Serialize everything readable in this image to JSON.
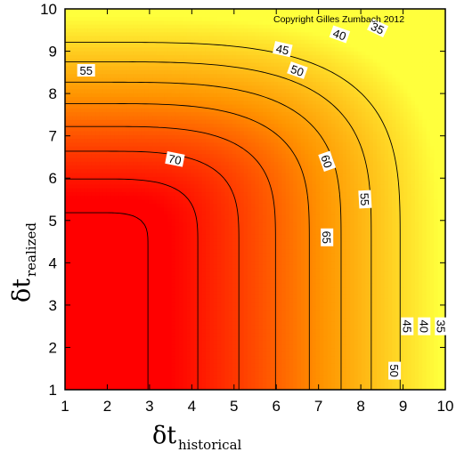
{
  "chart_data": {
    "type": "heatmap",
    "subtype": "filled-contour",
    "xlabel": {
      "main": "δt",
      "sub": "historical"
    },
    "ylabel": {
      "main": "δt",
      "sub": "realized"
    },
    "xlim": [
      1,
      10
    ],
    "ylim": [
      1,
      10
    ],
    "xticks": [
      "1",
      "2",
      "3",
      "4",
      "5",
      "6",
      "7",
      "8",
      "9",
      "10"
    ],
    "yticks": [
      "1",
      "2",
      "3",
      "4",
      "5",
      "6",
      "7",
      "8",
      "9",
      "10"
    ],
    "annotation": "Copyright Gilles Zumbach 2012",
    "colormap": {
      "low": "#ffff3c",
      "mid": "#ff9400",
      "high": "#ff0000"
    },
    "contour_levels": [
      35,
      40,
      45,
      50,
      55,
      60,
      65,
      70
    ],
    "contour_labels": [
      {
        "text": "35",
        "x": 8.4,
        "y": 9.55
      },
      {
        "text": "40",
        "x": 7.5,
        "y": 9.4
      },
      {
        "text": "45",
        "x": 6.15,
        "y": 9.05
      },
      {
        "text": "50",
        "x": 6.5,
        "y": 8.55
      },
      {
        "text": "55",
        "x": 1.5,
        "y": 8.55
      },
      {
        "text": "70",
        "x": 3.6,
        "y": 6.45
      },
      {
        "text": "60",
        "x": 7.2,
        "y": 6.4
      },
      {
        "text": "55",
        "x": 8.1,
        "y": 5.5
      },
      {
        "text": "65",
        "x": 7.2,
        "y": 4.6
      },
      {
        "text": "45",
        "x": 9.1,
        "y": 2.5
      },
      {
        "text": "40",
        "x": 9.5,
        "y": 2.5
      },
      {
        "text": "35",
        "x": 9.9,
        "y": 2.5
      },
      {
        "text": "50",
        "x": 8.8,
        "y": 1.45
      }
    ]
  }
}
